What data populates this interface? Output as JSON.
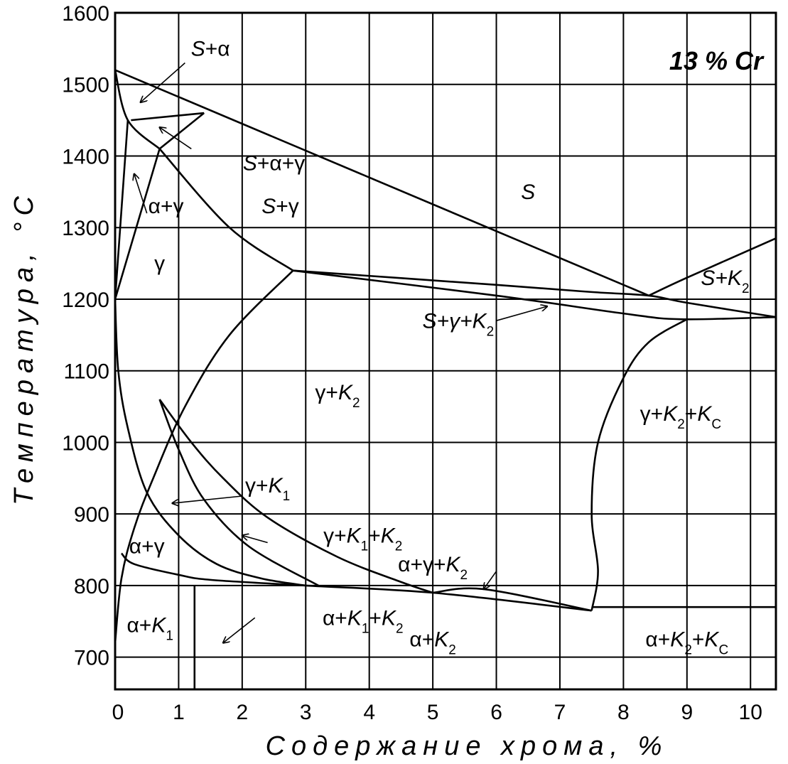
{
  "chart_data": {
    "type": "line",
    "stamp": "13 % Cr",
    "xlabel": "Содержание хрома, %",
    "ylabel": "Температура, °C",
    "xlim": [
      0,
      10.4
    ],
    "ylim": [
      655,
      1600
    ],
    "grid": true,
    "x_ticks": [
      "0",
      "1",
      "2",
      "3",
      "4",
      "5",
      "6",
      "7",
      "8",
      "9",
      "10"
    ],
    "y_ticks": [
      "700",
      "800",
      "900",
      "1000",
      "1100",
      "1200",
      "1300",
      "1400",
      "1500",
      "1600"
    ],
    "boundaries": [
      {
        "points": [
          [
            0,
            1520
          ],
          [
            8.4,
            1205
          ]
        ]
      },
      {
        "points": [
          [
            0,
            1520
          ],
          [
            0.2,
            1450
          ],
          [
            0.7,
            1410
          ]
        ]
      },
      {
        "points": [
          [
            0.25,
            1450
          ],
          [
            1.4,
            1460
          ]
        ]
      },
      {
        "points": [
          [
            1.4,
            1460
          ],
          [
            0.7,
            1410
          ]
        ]
      },
      {
        "points": [
          [
            0,
            1200
          ],
          [
            0.7,
            1410
          ]
        ]
      },
      {
        "points": [
          [
            0,
            1200
          ],
          [
            0.2,
            1450
          ]
        ]
      },
      {
        "points": [
          [
            0.7,
            1410
          ],
          [
            1.8,
            1300
          ],
          [
            2.8,
            1240
          ]
        ]
      },
      {
        "points": [
          [
            2.8,
            1240
          ],
          [
            6,
            1220
          ],
          [
            7.5,
            1210
          ],
          [
            8.4,
            1205
          ],
          [
            9,
            1195
          ],
          [
            10.4,
            1175
          ]
        ]
      },
      {
        "points": [
          [
            2.8,
            1240
          ],
          [
            6,
            1205
          ],
          [
            8,
            1180
          ],
          [
            8.9,
            1172
          ],
          [
            10.4,
            1175
          ]
        ]
      },
      {
        "points": [
          [
            8.4,
            1205
          ],
          [
            9,
            1230
          ],
          [
            10.4,
            1285
          ]
        ]
      },
      {
        "points": [
          [
            2.8,
            1240
          ],
          [
            1.8,
            1150
          ],
          [
            1.1,
            1050
          ],
          [
            0.6,
            950
          ],
          [
            0.3,
            880
          ],
          [
            0.1,
            810
          ],
          [
            0,
            720
          ]
        ]
      },
      {
        "points": [
          [
            0,
            1200
          ],
          [
            0.05,
            1100
          ],
          [
            0.2,
            1020
          ],
          [
            0.5,
            930
          ],
          [
            1.0,
            870
          ],
          [
            1.6,
            830
          ],
          [
            2.3,
            810
          ],
          [
            3,
            800
          ]
        ]
      },
      {
        "points": [
          [
            0.7,
            1060
          ],
          [
            1.0,
            990
          ],
          [
            1.4,
            920
          ],
          [
            2.1,
            855
          ],
          [
            3.2,
            800
          ]
        ]
      },
      {
        "points": [
          [
            0.7,
            1060
          ],
          [
            1.2,
            1000
          ],
          [
            1.7,
            950
          ],
          [
            2.4,
            895
          ],
          [
            3.5,
            840
          ],
          [
            4.5,
            805
          ],
          [
            5.0,
            790
          ]
        ]
      },
      {
        "points": [
          [
            0.1,
            845
          ],
          [
            0.3,
            830
          ],
          [
            1.0,
            815
          ],
          [
            1.5,
            808
          ],
          [
            3.0,
            800
          ],
          [
            5.0,
            790
          ],
          [
            7.5,
            765
          ]
        ]
      },
      {
        "points": [
          [
            5.0,
            790
          ],
          [
            5.8,
            795
          ],
          [
            7.5,
            765
          ]
        ]
      },
      {
        "points": [
          [
            9,
            1172
          ],
          [
            8.4,
            1140
          ],
          [
            8,
            1090
          ],
          [
            7.6,
            1000
          ],
          [
            7.5,
            900
          ],
          [
            7.6,
            820
          ],
          [
            7.5,
            765
          ]
        ]
      },
      {
        "points": [
          [
            7.5,
            770
          ],
          [
            10.4,
            770
          ]
        ]
      },
      {
        "points": [
          [
            1.25,
            655
          ],
          [
            1.25,
            800
          ]
        ]
      }
    ],
    "phase_labels": [
      {
        "text": "S+α",
        "x": 1.5,
        "y": 1540
      },
      {
        "text": "S+α+γ",
        "x": 2.5,
        "y": 1380
      },
      {
        "text": "α+γ",
        "x": 0.8,
        "y": 1320
      },
      {
        "text": "S+γ",
        "x": 2.6,
        "y": 1320
      },
      {
        "text": "S",
        "x": 6.5,
        "y": 1340
      },
      {
        "text": "γ",
        "x": 0.7,
        "y": 1240
      },
      {
        "text": "S+K2",
        "x": 9.6,
        "y": 1220
      },
      {
        "text": "S+γ+K2",
        "x": 5.4,
        "y": 1160
      },
      {
        "text": "γ+K2",
        "x": 3.5,
        "y": 1060
      },
      {
        "text": "γ+K2+KC",
        "x": 8.9,
        "y": 1030
      },
      {
        "text": "γ+K1",
        "x": 2.4,
        "y": 930
      },
      {
        "text": "γ+K1+K2",
        "x": 3.9,
        "y": 860
      },
      {
        "text": "α+γ+K2",
        "x": 5.0,
        "y": 820
      },
      {
        "text": "α+γ",
        "x": 0.5,
        "y": 845
      },
      {
        "text": "α+K1",
        "x": 0.55,
        "y": 735
      },
      {
        "text": "α+K1+K2",
        "x": 3.9,
        "y": 745
      },
      {
        "text": "α+K2",
        "x": 5.0,
        "y": 715
      },
      {
        "text": "α+K2+KC",
        "x": 9.0,
        "y": 715
      }
    ],
    "arrows": [
      {
        "from": [
          1.1,
          1530
        ],
        "to": [
          0.4,
          1475
        ]
      },
      {
        "from": [
          1.2,
          1410
        ],
        "to": [
          0.7,
          1440
        ]
      },
      {
        "from": [
          0.5,
          1320
        ],
        "to": [
          0.3,
          1375
        ]
      },
      {
        "from": [
          2.0,
          925
        ],
        "to": [
          0.9,
          915
        ]
      },
      {
        "from": [
          2.4,
          860
        ],
        "to": [
          2.0,
          870
        ]
      },
      {
        "from": [
          2.2,
          755
        ],
        "to": [
          1.7,
          720
        ]
      },
      {
        "from": [
          6,
          820
        ],
        "to": [
          5.8,
          795
        ]
      },
      {
        "from": [
          6,
          1170
        ],
        "to": [
          6.8,
          1190
        ]
      }
    ]
  }
}
